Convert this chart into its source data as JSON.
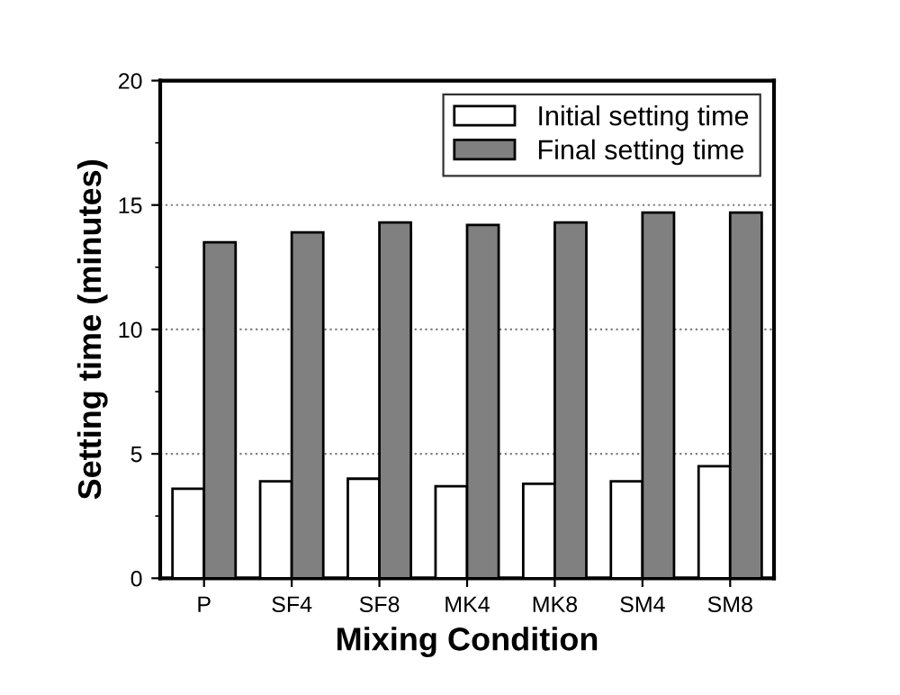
{
  "chart_data": {
    "type": "bar",
    "xlabel": "Mixing Condition",
    "ylabel": "Setting time (minutes)",
    "categories": [
      "P",
      "SF4",
      "SF8",
      "MK4",
      "MK8",
      "SM4",
      "SM8"
    ],
    "series": [
      {
        "name": "Initial setting time",
        "color": "#ffffff",
        "values": [
          3.6,
          3.9,
          4.0,
          3.7,
          3.8,
          3.9,
          4.5
        ]
      },
      {
        "name": "Final setting time",
        "color": "#808080",
        "values": [
          13.5,
          13.9,
          14.3,
          14.2,
          14.3,
          14.7,
          14.7
        ]
      }
    ],
    "ylim": [
      0,
      20
    ],
    "yticks": [
      0,
      5,
      10,
      15,
      20
    ],
    "grid": "y",
    "legend": "top right"
  }
}
